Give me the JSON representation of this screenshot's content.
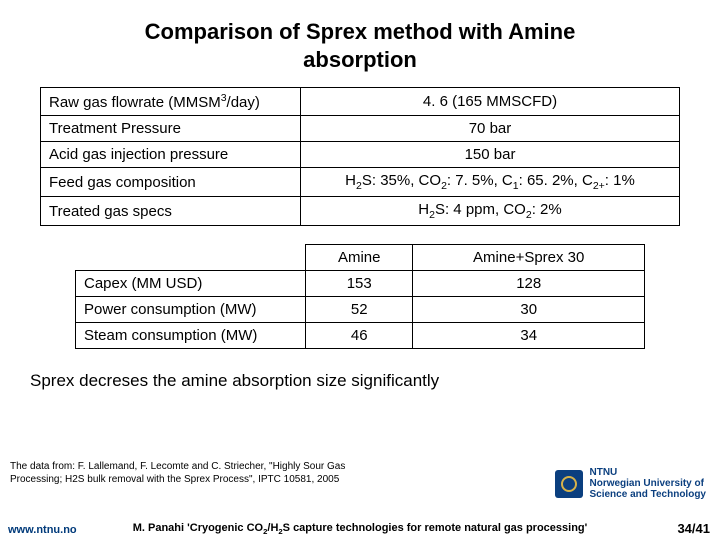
{
  "title_l1": "Comparison of Sprex method with Amine",
  "title_l2": "absorption",
  "table1": {
    "rows": [
      {
        "label_html": "Raw gas flowrate (MMSM<sup>3</sup>/day)",
        "value_html": "4. 6 (165 MMSCFD)"
      },
      {
        "label_html": "Treatment Pressure",
        "value_html": "70 bar"
      },
      {
        "label_html": "Acid gas injection pressure",
        "value_html": "150 bar"
      },
      {
        "label_html": "Feed gas composition",
        "value_html": "H<sub>2</sub>S: 35%, CO<sub>2</sub>: 7. 5%, C<sub>1</sub>: 65. 2%, C<sub>2+</sub>: 1%"
      },
      {
        "label_html": "Treated gas specs",
        "value_html": "H<sub>2</sub>S: 4 ppm, CO<sub>2</sub>: 2%"
      }
    ]
  },
  "table2": {
    "col1": "Amine",
    "col2": "Amine+Sprex 30",
    "rows": [
      {
        "label": "Capex (MM USD)",
        "v1": "153",
        "v2": "128"
      },
      {
        "label": "Power consumption (MW)",
        "v1": "52",
        "v2": "30"
      },
      {
        "label": "Steam consumption (MW)",
        "v1": "46",
        "v2": "34"
      }
    ]
  },
  "note": "Sprex decreses the amine absorption size significantly",
  "source": "The data from: F. Lallemand, F. Lecomte and C. Striecher, \"Highly Sour Gas Processing; H2S bulk removal with the Sprex Process\", IPTC 10581, 2005",
  "url": "www.ntnu.no",
  "citation_html": "M. Panahi 'Cryogenic CO<sub>2</sub>/H<sub>2</sub>S capture technologies for remote natural gas processing'",
  "pagenum": "34/41",
  "logo_l1": "NTNU",
  "logo_l2": "Norwegian University of",
  "logo_l3": "Science and Technology"
}
